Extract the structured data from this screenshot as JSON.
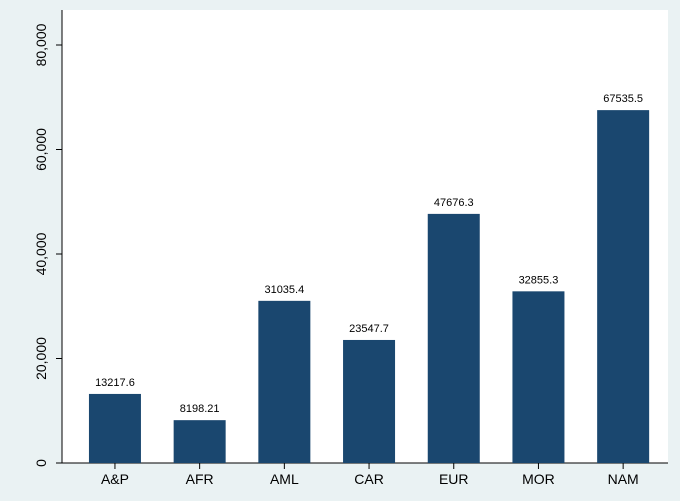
{
  "chart_data": {
    "type": "bar",
    "categories": [
      "A&P",
      "AFR",
      "AML",
      "CAR",
      "EUR",
      "MOR",
      "NAM"
    ],
    "values": [
      13217.6,
      8198.21,
      31035.4,
      23547.7,
      47676.3,
      32855.3,
      67535.5
    ],
    "color": "#1a476f",
    "ylim": [
      0,
      80000
    ],
    "yticks": [
      0,
      {
        "value": 20000,
        "label": "20,000"
      },
      {
        "value": 40000,
        "label": "40,000"
      },
      {
        "value": 60000,
        "label": "60,000"
      },
      {
        "value": 80000,
        "label": "80,000"
      }
    ],
    "grid": false
  }
}
